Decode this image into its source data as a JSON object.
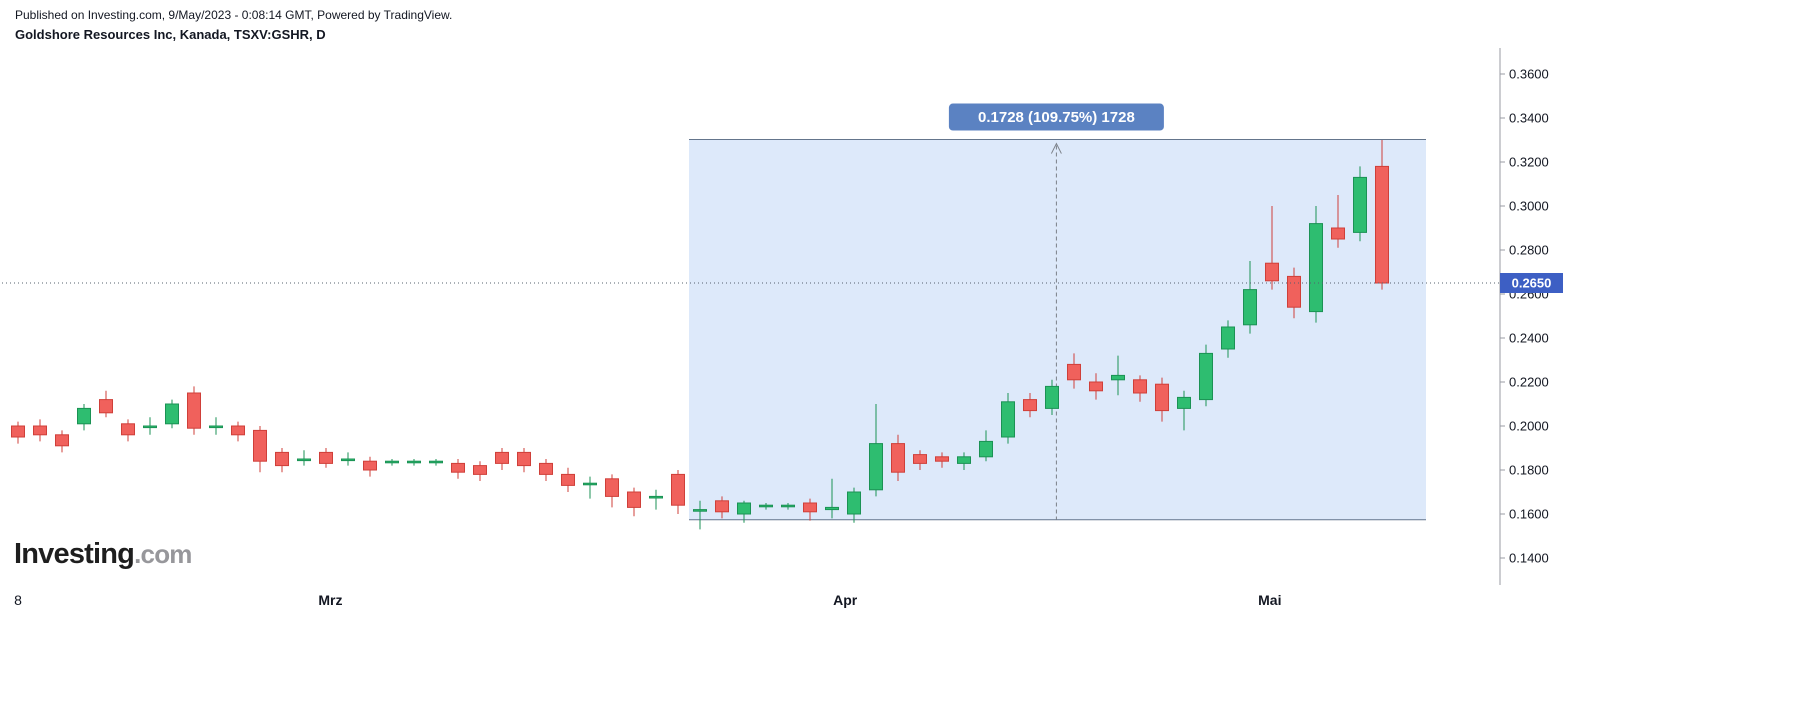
{
  "header": {
    "published": "Published on Investing.com, 9/May/2023 - 0:08:14 GMT, Powered by TradingView.",
    "instrument": "Goldshore Resources Inc, Kanada, TSXV:GSHR, D"
  },
  "logo": {
    "main": "Investing",
    "suffix": ".com"
  },
  "colors": {
    "up_fill": "#2ebd70",
    "up_stroke": "#1b9254",
    "down_fill": "#f0615c",
    "down_stroke": "#cf3f39",
    "measure_fill": "rgba(118,169,235,0.25)",
    "measure_edge": "#64758c",
    "measure_badge_bg": "#5b82c2",
    "measure_dash": "#7b8088",
    "price_line": "#55606e",
    "price_badge_bg": "#3d5fc4",
    "axis_line": "#989ba3",
    "axis_text": "#131722"
  },
  "chart_data": {
    "type": "candlestick",
    "symbol": "TSXV:GSHR",
    "interval": "D",
    "legend_position": "none",
    "grid": false,
    "last_price": {
      "value": 0.265,
      "label": "0.2650"
    },
    "y_axis": {
      "min": 0.13,
      "max": 0.372,
      "ticks": [
        {
          "value": 0.36,
          "label": "0.3600"
        },
        {
          "value": 0.34,
          "label": "0.3400"
        },
        {
          "value": 0.32,
          "label": "0.3200"
        },
        {
          "value": 0.3,
          "label": "0.3000"
        },
        {
          "value": 0.28,
          "label": "0.2800"
        },
        {
          "value": 0.26,
          "label": "0.2600"
        },
        {
          "value": 0.24,
          "label": "0.2400"
        },
        {
          "value": 0.22,
          "label": "0.2200"
        },
        {
          "value": 0.2,
          "label": "0.2000"
        },
        {
          "value": 0.18,
          "label": "0.1800"
        },
        {
          "value": 0.16,
          "label": "0.1600"
        },
        {
          "value": 0.14,
          "label": "0.1400"
        }
      ]
    },
    "x_axis": {
      "ticks": [
        {
          "pos": 0,
          "label": "8",
          "bold": false
        },
        {
          "pos": 14.2,
          "label": "Mrz",
          "bold": true
        },
        {
          "pos": 37.6,
          "label": "Apr",
          "bold": true
        },
        {
          "pos": 56.9,
          "label": "Mai",
          "bold": true
        }
      ]
    },
    "measurement": {
      "label": "0.1728 (109.75%) 1728",
      "change": 0.1728,
      "change_pct": 109.75,
      "price_from": 0.1574,
      "price_to": 0.3302,
      "start_index": 30.5,
      "end_index": 64,
      "arrow_index": 47.2
    },
    "candles": [
      [
        0.2,
        0.202,
        0.192,
        0.195
      ],
      [
        0.2,
        0.203,
        0.193,
        0.196
      ],
      [
        0.196,
        0.198,
        0.188,
        0.191
      ],
      [
        0.201,
        0.21,
        0.198,
        0.208
      ],
      [
        0.212,
        0.216,
        0.204,
        0.206
      ],
      [
        0.201,
        0.203,
        0.193,
        0.196
      ],
      [
        0.2,
        0.204,
        0.196,
        0.2
      ],
      [
        0.201,
        0.212,
        0.199,
        0.21
      ],
      [
        0.215,
        0.218,
        0.196,
        0.199
      ],
      [
        0.2,
        0.204,
        0.196,
        0.2
      ],
      [
        0.2,
        0.202,
        0.193,
        0.196
      ],
      [
        0.198,
        0.2,
        0.179,
        0.184
      ],
      [
        0.188,
        0.19,
        0.179,
        0.182
      ],
      [
        0.185,
        0.189,
        0.182,
        0.185
      ],
      [
        0.188,
        0.19,
        0.181,
        0.183
      ],
      [
        0.185,
        0.188,
        0.182,
        0.185
      ],
      [
        0.184,
        0.186,
        0.177,
        0.18
      ],
      [
        0.184,
        0.185,
        0.182,
        0.184
      ],
      [
        0.184,
        0.185,
        0.182,
        0.184
      ],
      [
        0.184,
        0.185,
        0.182,
        0.184
      ],
      [
        0.183,
        0.185,
        0.176,
        0.179
      ],
      [
        0.182,
        0.184,
        0.175,
        0.178
      ],
      [
        0.188,
        0.19,
        0.18,
        0.183
      ],
      [
        0.188,
        0.19,
        0.179,
        0.182
      ],
      [
        0.183,
        0.185,
        0.175,
        0.178
      ],
      [
        0.178,
        0.181,
        0.17,
        0.173
      ],
      [
        0.174,
        0.177,
        0.167,
        0.174
      ],
      [
        0.176,
        0.178,
        0.163,
        0.168
      ],
      [
        0.17,
        0.172,
        0.159,
        0.163
      ],
      [
        0.168,
        0.171,
        0.162,
        0.168
      ],
      [
        0.178,
        0.18,
        0.16,
        0.164
      ],
      [
        0.162,
        0.166,
        0.153,
        0.162
      ],
      [
        0.166,
        0.168,
        0.158,
        0.161
      ],
      [
        0.16,
        0.166,
        0.156,
        0.165
      ],
      [
        0.164,
        0.165,
        0.162,
        0.164
      ],
      [
        0.164,
        0.165,
        0.162,
        0.164
      ],
      [
        0.165,
        0.167,
        0.157,
        0.161
      ],
      [
        0.162,
        0.176,
        0.158,
        0.163
      ],
      [
        0.16,
        0.172,
        0.156,
        0.17
      ],
      [
        0.171,
        0.21,
        0.168,
        0.192
      ],
      [
        0.192,
        0.196,
        0.175,
        0.179
      ],
      [
        0.187,
        0.189,
        0.18,
        0.183
      ],
      [
        0.186,
        0.188,
        0.181,
        0.184
      ],
      [
        0.183,
        0.188,
        0.18,
        0.186
      ],
      [
        0.186,
        0.198,
        0.184,
        0.193
      ],
      [
        0.195,
        0.215,
        0.192,
        0.211
      ],
      [
        0.212,
        0.215,
        0.204,
        0.207
      ],
      [
        0.208,
        0.221,
        0.205,
        0.218
      ],
      [
        0.228,
        0.233,
        0.217,
        0.221
      ],
      [
        0.22,
        0.224,
        0.212,
        0.216
      ],
      [
        0.221,
        0.232,
        0.214,
        0.223
      ],
      [
        0.221,
        0.223,
        0.211,
        0.215
      ],
      [
        0.219,
        0.222,
        0.202,
        0.207
      ],
      [
        0.208,
        0.216,
        0.198,
        0.213
      ],
      [
        0.212,
        0.237,
        0.209,
        0.233
      ],
      [
        0.235,
        0.248,
        0.231,
        0.245
      ],
      [
        0.246,
        0.275,
        0.242,
        0.262
      ],
      [
        0.274,
        0.3,
        0.262,
        0.266
      ],
      [
        0.268,
        0.272,
        0.249,
        0.254
      ],
      [
        0.252,
        0.3,
        0.247,
        0.292
      ],
      [
        0.29,
        0.305,
        0.281,
        0.285
      ],
      [
        0.288,
        0.318,
        0.284,
        0.313
      ],
      [
        0.318,
        0.33,
        0.262,
        0.265
      ]
    ]
  }
}
